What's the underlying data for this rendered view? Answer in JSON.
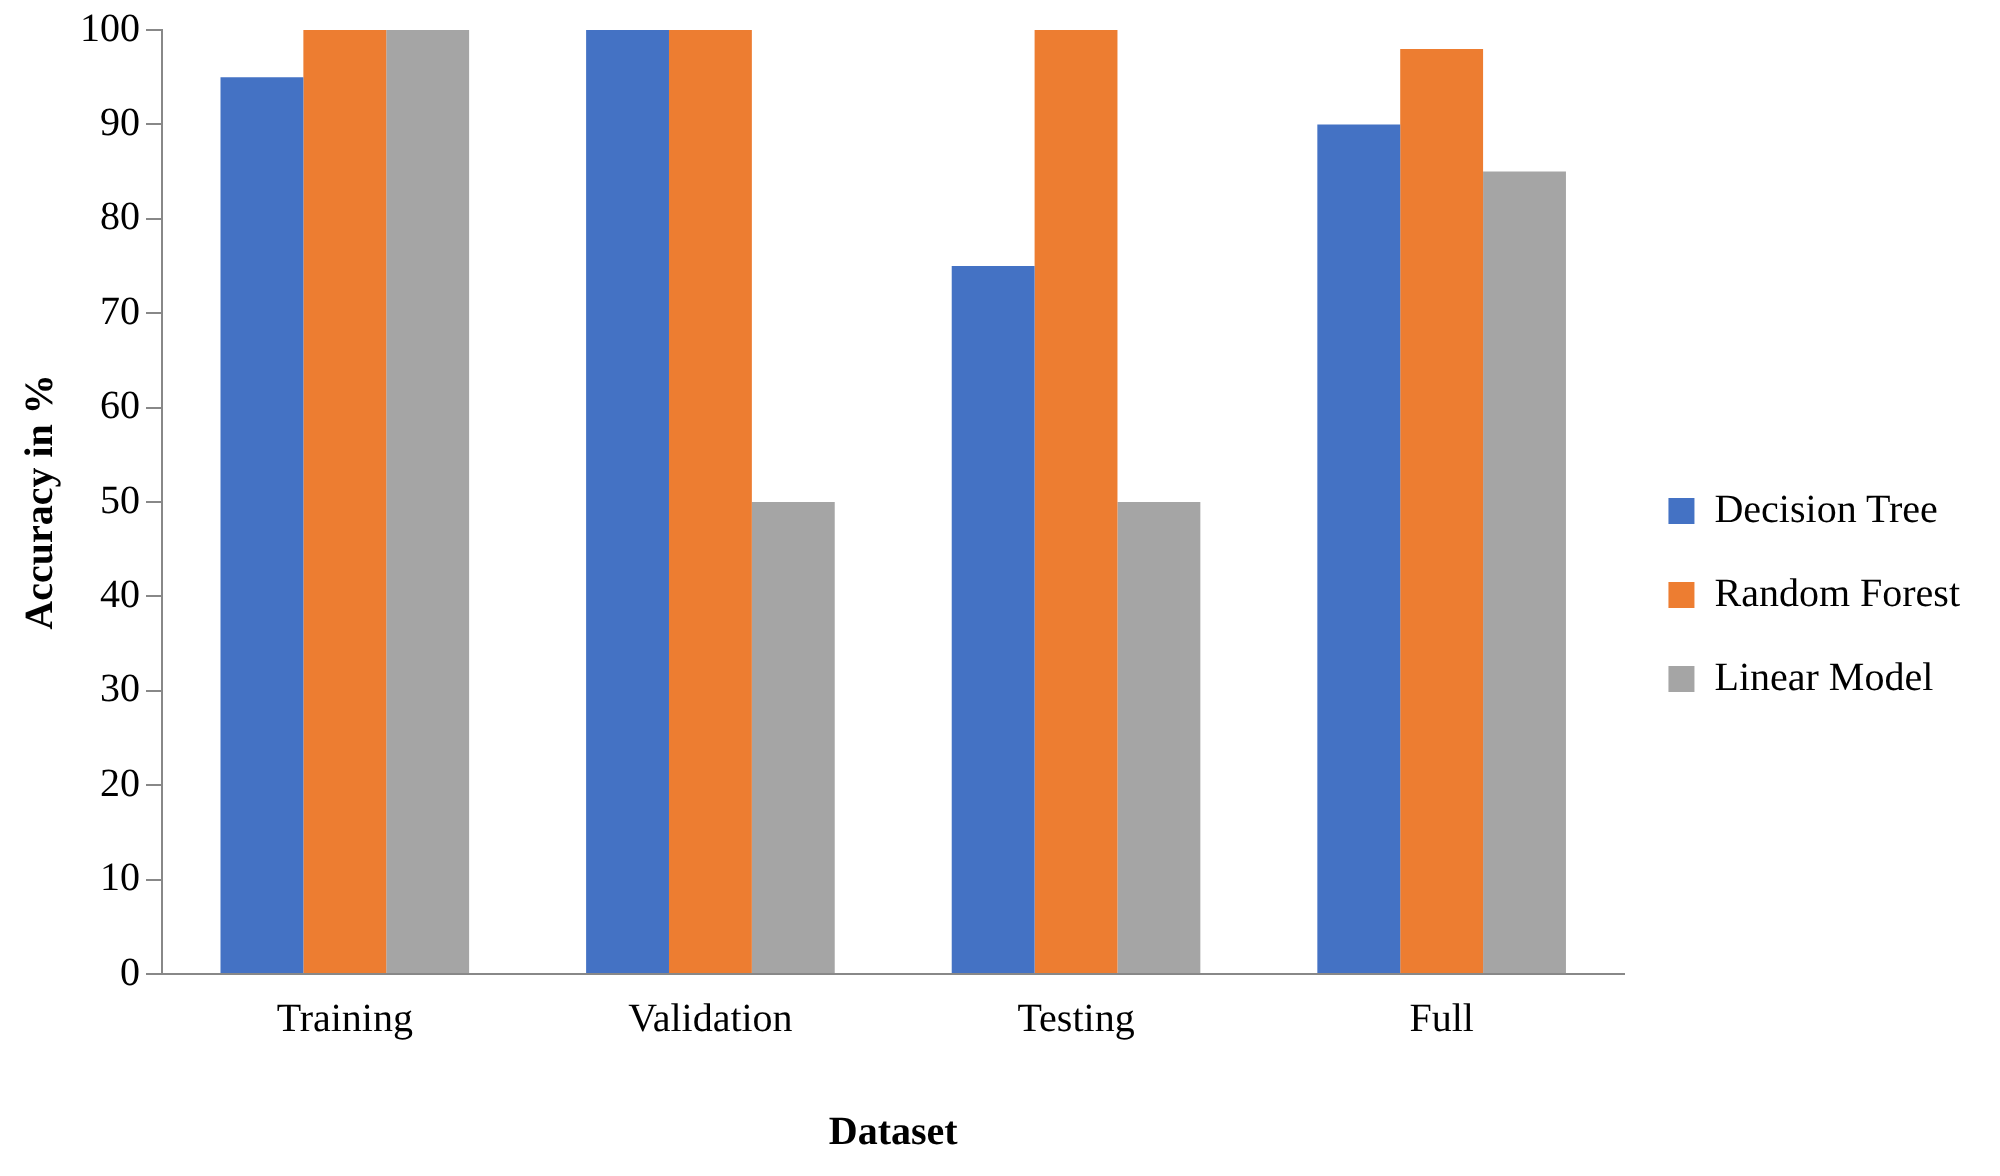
{
  "chart_data": {
    "type": "bar",
    "xlabel": "Dataset",
    "ylabel": "Accuracy in %",
    "categories": [
      "Training",
      "Validation",
      "Testing",
      "Full"
    ],
    "series": [
      {
        "name": "Decision Tree",
        "color": "#4472c4",
        "values": [
          95,
          100,
          75,
          90
        ]
      },
      {
        "name": "Random Forest",
        "color": "#ed7d31",
        "values": [
          100,
          100,
          100,
          98
        ]
      },
      {
        "name": "Linear Model",
        "color": "#a5a5a5",
        "values": [
          100,
          50,
          50,
          85
        ]
      }
    ],
    "ylim": [
      0,
      100
    ],
    "yticks": [
      0,
      10,
      20,
      30,
      40,
      50,
      60,
      70,
      80,
      90,
      100
    ],
    "grid": false,
    "legend": "right"
  }
}
